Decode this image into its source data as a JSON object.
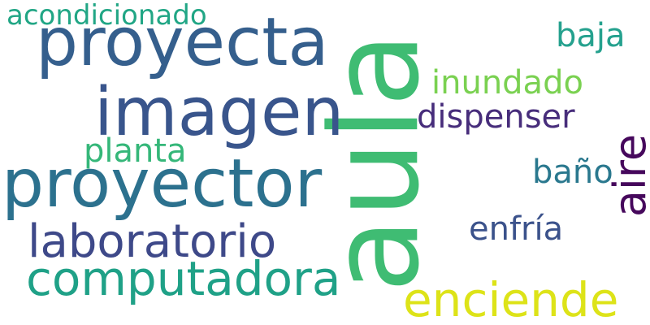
{
  "words": {
    "w01": {
      "text": "aula",
      "color": "#3fbc73"
    },
    "w02": {
      "text": "proyecta",
      "color": "#355f8d"
    },
    "w03": {
      "text": "imagen",
      "color": "#39558c"
    },
    "w04": {
      "text": "proyector",
      "color": "#2c718e"
    },
    "w05": {
      "text": "laboratorio",
      "color": "#3e4989"
    },
    "w06": {
      "text": "computadora",
      "color": "#1fa187"
    },
    "w07": {
      "text": "enciende",
      "color": "#dde318"
    },
    "w08": {
      "text": "aire",
      "color": "#46085c"
    },
    "w09": {
      "text": "acondicionado",
      "color": "#21a685"
    },
    "w10": {
      "text": "baja",
      "color": "#25a18e"
    },
    "w11": {
      "text": "inundado",
      "color": "#7ad151"
    },
    "w12": {
      "text": "dispenser",
      "color": "#472d7b"
    },
    "w13": {
      "text": "planta",
      "color": "#35b779"
    },
    "w14": {
      "text": "baño",
      "color": "#2a788e"
    },
    "w15": {
      "text": "enfría",
      "color": "#3b528b"
    }
  }
}
